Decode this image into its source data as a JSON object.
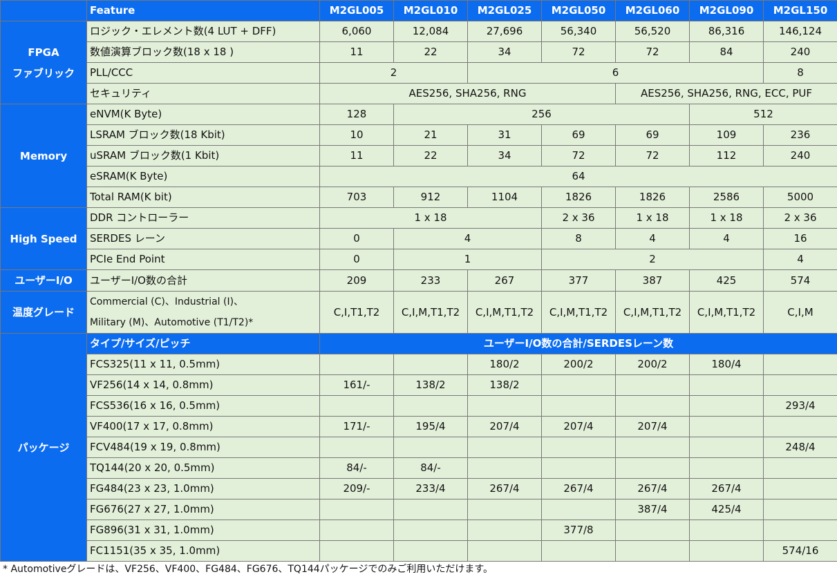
{
  "header": {
    "feature": "Feature",
    "models": [
      "M2GL005",
      "M2GL010",
      "M2GL025",
      "M2GL050",
      "M2GL060",
      "M2GL090",
      "M2GL150"
    ]
  },
  "fpga": {
    "category_line1": "FPGA",
    "category_line2": "ファブリック",
    "rows": [
      {
        "label": "ロジック・エレメント数(4 LUT + DFF)",
        "values": [
          "6,060",
          "12,084",
          "27,696",
          "56,340",
          "56,520",
          "86,316",
          "146,124"
        ]
      },
      {
        "label": "数値演算ブロック数(18 x 18 )",
        "values": [
          "11",
          "22",
          "34",
          "72",
          "72",
          "84",
          "240"
        ]
      }
    ],
    "pll": {
      "label": "PLL/CCC",
      "values": [
        "2",
        "6",
        "8"
      ]
    },
    "security": {
      "label": "セキュリティ",
      "values": [
        "AES256, SHA256, RNG",
        "AES256, SHA256, RNG, ECC, PUF"
      ]
    }
  },
  "memory": {
    "category": "Memory",
    "envm": {
      "label": "eNVM(K Byte)",
      "values": [
        "128",
        "256",
        "512"
      ]
    },
    "lsram": {
      "label": "LSRAM ブロック数(18 Kbit)",
      "values": [
        "10",
        "21",
        "31",
        "69",
        "69",
        "109",
        "236"
      ]
    },
    "usram": {
      "label": "uSRAM ブロック数(1 Kbit)",
      "values": [
        "11",
        "22",
        "34",
        "72",
        "72",
        "112",
        "240"
      ]
    },
    "esram": {
      "label": "eSRAM(K Byte)",
      "value": "64"
    },
    "total": {
      "label": "Total RAM(K bit)",
      "values": [
        "703",
        "912",
        "1104",
        "1826",
        "1826",
        "2586",
        "5000"
      ]
    }
  },
  "highspeed": {
    "category": "High Speed",
    "ddr": {
      "label": "DDR コントローラー",
      "values": [
        "1 x 18",
        "2 x 36",
        "1 x 18",
        "1 x 18",
        "2 x 36"
      ]
    },
    "serdes": {
      "label": "SERDES レーン",
      "values": [
        "0",
        "4",
        "8",
        "4",
        "4",
        "16"
      ]
    },
    "pcie": {
      "label": "PCIe End Point",
      "values": [
        "0",
        "1",
        "2",
        "4"
      ]
    }
  },
  "userio": {
    "category": "ユーザーI/O",
    "label": "ユーザーI/O数の合計",
    "values": [
      "209",
      "233",
      "267",
      "377",
      "387",
      "425",
      "574"
    ]
  },
  "temp": {
    "category": "温度グレード",
    "label_line1": "Commercial (C)、Industrial (I)、",
    "label_line2": "Military (M)、Automotive (T1/T2)*",
    "values": [
      "C,I,T1,T2",
      "C,I,M,T1,T2",
      "C,I,M,T1,T2",
      "C,I,M,T1,T2",
      "C,I,M,T1,T2",
      "C,I,M,T1,T2",
      "C,I,M"
    ]
  },
  "package": {
    "category": "パッケージ",
    "sub_header_left": "タイプ/サイズ/ピッチ",
    "sub_header_right": "ユーザーI/O数の合計/SERDESレーン数",
    "rows": [
      {
        "label": "FCS325(11 x 11, 0.5mm)",
        "values": [
          "",
          "",
          "180/2",
          "200/2",
          "200/2",
          "180/4",
          ""
        ]
      },
      {
        "label": "VF256(14 x 14, 0.8mm)",
        "values": [
          "161/-",
          "138/2",
          "138/2",
          "",
          "",
          "",
          ""
        ]
      },
      {
        "label": "FCS536(16 x 16, 0.5mm)",
        "values": [
          "",
          "",
          "",
          "",
          "",
          "",
          "293/4"
        ]
      },
      {
        "label": "VF400(17 x 17, 0.8mm)",
        "values": [
          "171/-",
          "195/4",
          "207/4",
          "207/4",
          "207/4",
          "",
          ""
        ]
      },
      {
        "label": "FCV484(19 x 19, 0.8mm)",
        "values": [
          "",
          "",
          "",
          "",
          "",
          "",
          "248/4"
        ]
      },
      {
        "label": "TQ144(20 x 20, 0.5mm)",
        "values": [
          "84/-",
          "84/-",
          "",
          "",
          "",
          "",
          ""
        ]
      },
      {
        "label": "FG484(23 x 23, 1.0mm)",
        "values": [
          "209/-",
          "233/4",
          "267/4",
          "267/4",
          "267/4",
          "267/4",
          ""
        ]
      },
      {
        "label": "FG676(27 x 27, 1.0mm)",
        "values": [
          "",
          "",
          "",
          "",
          "387/4",
          "425/4",
          ""
        ]
      },
      {
        "label": "FG896(31 x 31, 1.0mm)",
        "values": [
          "",
          "",
          "",
          "377/8",
          "",
          "",
          ""
        ]
      },
      {
        "label": "FC1151(35 x 35, 1.0mm)",
        "values": [
          "",
          "",
          "",
          "",
          "",
          "",
          "574/16"
        ]
      }
    ]
  },
  "footnote": "* Automotiveグレードは、VF256、VF400、FG484、FG676、TQ144パッケージでのみご利用いただけます。",
  "colors": {
    "header_blue": "#0c6cf0",
    "cell_green": "#e3f0d9",
    "border": "#777777"
  }
}
